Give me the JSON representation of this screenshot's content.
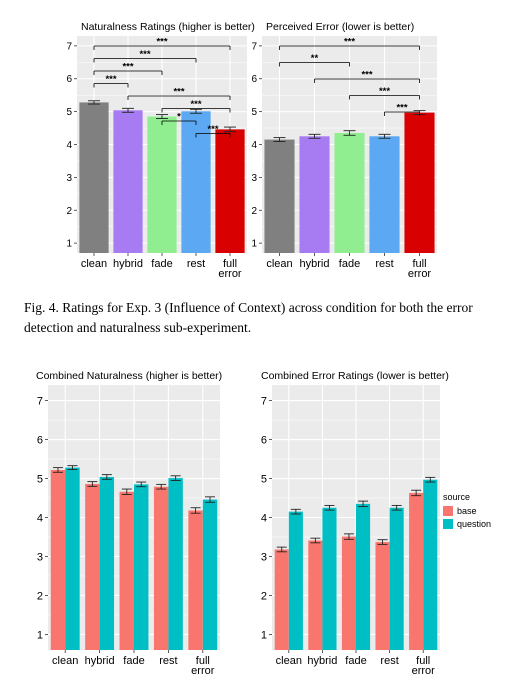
{
  "caption": "Fig. 4.  Ratings for Exp. 3 (Influence of Context) across condition for both the error detection and naturalness sub-experiment.",
  "colors": {
    "panel_bg": "#ebebeb",
    "grid": "#ffffff",
    "base": "#f8766d",
    "question": "#00bfc4",
    "bars_top": [
      "#808080",
      "#a77cf2",
      "#90ee90",
      "#5ca8f2",
      "#d80000"
    ]
  },
  "legend": {
    "title": "source",
    "items": [
      {
        "label": "base",
        "color": "#f8766d"
      },
      {
        "label": "question",
        "color": "#00bfc4"
      }
    ]
  },
  "chart_data": [
    {
      "type": "bar",
      "title": "Naturalness Ratings (higher is better)",
      "categories": [
        "clean",
        "hybrid",
        "fade",
        "rest",
        "full error"
      ],
      "values": [
        5.28,
        5.04,
        4.85,
        5.01,
        4.46
      ],
      "errors": [
        0.05,
        0.06,
        0.06,
        0.06,
        0.07
      ],
      "ylim": [
        0.7,
        7.3
      ],
      "yticks": [
        1,
        2,
        3,
        4,
        5,
        6,
        7
      ],
      "significance": [
        {
          "from": 0,
          "to": 4,
          "label": "***"
        },
        {
          "from": 0,
          "to": 3,
          "label": "***"
        },
        {
          "from": 0,
          "to": 2,
          "label": "***"
        },
        {
          "from": 0,
          "to": 1,
          "label": "***"
        },
        {
          "from": 1,
          "to": 4,
          "label": "***"
        },
        {
          "from": 2,
          "to": 4,
          "label": "***"
        },
        {
          "from": 2,
          "to": 3,
          "label": "*"
        },
        {
          "from": 3,
          "to": 4,
          "label": "***"
        }
      ]
    },
    {
      "type": "bar",
      "title": "Perceived Error (lower is better)",
      "categories": [
        "clean",
        "hybrid",
        "fade",
        "rest",
        "full error"
      ],
      "values": [
        4.15,
        4.25,
        4.35,
        4.25,
        4.97
      ],
      "errors": [
        0.06,
        0.06,
        0.07,
        0.06,
        0.06
      ],
      "ylim": [
        0.7,
        7.3
      ],
      "yticks": [
        1,
        2,
        3,
        4,
        5,
        6,
        7
      ],
      "significance": [
        {
          "from": 0,
          "to": 4,
          "label": "***"
        },
        {
          "from": 0,
          "to": 2,
          "label": "**"
        },
        {
          "from": 1,
          "to": 4,
          "label": "***"
        },
        {
          "from": 2,
          "to": 4,
          "label": "***"
        },
        {
          "from": 3,
          "to": 4,
          "label": "***"
        }
      ]
    },
    {
      "type": "bar",
      "title": "Combined Naturalness (higher is better)",
      "categories": [
        "clean",
        "hybrid",
        "fade",
        "rest",
        "full error"
      ],
      "series": [
        {
          "name": "base",
          "values": [
            5.22,
            4.86,
            4.66,
            4.79,
            4.18
          ],
          "errors": [
            0.06,
            0.06,
            0.07,
            0.06,
            0.07
          ]
        },
        {
          "name": "question",
          "values": [
            5.28,
            5.04,
            4.85,
            5.01,
            4.46
          ],
          "errors": [
            0.05,
            0.06,
            0.06,
            0.06,
            0.07
          ]
        }
      ],
      "ylim": [
        0.6,
        7.4
      ],
      "yticks": [
        1,
        2,
        3,
        4,
        5,
        6,
        7
      ]
    },
    {
      "type": "bar",
      "title": "Combined Error Ratings (lower is better)",
      "categories": [
        "clean",
        "hybrid",
        "fade",
        "rest",
        "full error"
      ],
      "series": [
        {
          "name": "base",
          "values": [
            3.18,
            3.41,
            3.51,
            3.37,
            4.63
          ],
          "errors": [
            0.06,
            0.06,
            0.07,
            0.06,
            0.07
          ]
        },
        {
          "name": "question",
          "values": [
            4.15,
            4.25,
            4.35,
            4.25,
            4.97
          ],
          "errors": [
            0.06,
            0.06,
            0.07,
            0.06,
            0.06
          ]
        }
      ],
      "ylim": [
        0.6,
        7.4
      ],
      "yticks": [
        1,
        2,
        3,
        4,
        5,
        6,
        7
      ]
    }
  ]
}
